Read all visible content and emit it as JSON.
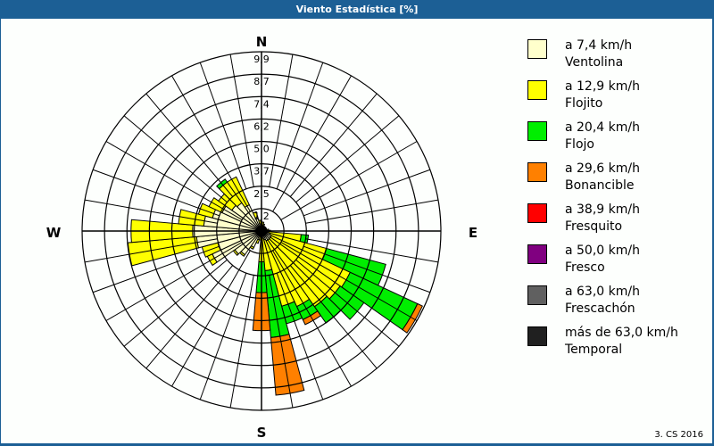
{
  "window": {
    "title": "Viento Estadística [%]",
    "titlebar_color": "#1c5f95",
    "copyright": "3. CS 2016"
  },
  "chart_data": {
    "type": "wind-rose",
    "title": "Viento Estadística [%]",
    "unit": "%",
    "directions": {
      "N": "N",
      "E": "E",
      "S": "S",
      "W": "W"
    },
    "sector_width_deg": 10,
    "rings": [
      "1,2",
      "2,5",
      "3,7",
      "5,0",
      "6,2",
      "7,4",
      "8,7",
      "9,9"
    ],
    "rmax": 9.9,
    "legend": [
      {
        "range": "a 7,4 km/h",
        "name": "Ventolina",
        "color": "#ffffcc"
      },
      {
        "range": "a 12,9 km/h",
        "name": "Flojito",
        "color": "#ffff00"
      },
      {
        "range": "a 20,4 km/h",
        "name": "Flojo",
        "color": "#00ee00"
      },
      {
        "range": "a 29,6 km/h",
        "name": "Bonancible",
        "color": "#ff8000"
      },
      {
        "range": "a 38,9 km/h",
        "name": "Fresquito",
        "color": "#ff0000"
      },
      {
        "range": "a 50,0 km/h",
        "name": "Fresco",
        "color": "#800080"
      },
      {
        "range": "a 63,0 km/h",
        "name": "Frescachón",
        "color": "#606060"
      },
      {
        "range": "más de 63,0 km/h",
        "name": "Temporal",
        "color": "#202020"
      }
    ],
    "sectors": [
      {
        "dir": 0,
        "cum": [
          0.3,
          0.4
        ]
      },
      {
        "dir": 10,
        "cum": [
          0.3,
          0.5
        ]
      },
      {
        "dir": 20,
        "cum": [
          0.3,
          0.4
        ]
      },
      {
        "dir": 30,
        "cum": [
          0.2,
          0.3
        ]
      },
      {
        "dir": 40,
        "cum": [
          0.2,
          0.3
        ]
      },
      {
        "dir": 50,
        "cum": [
          0.2,
          0.3
        ]
      },
      {
        "dir": 60,
        "cum": [
          0.2,
          0.3
        ]
      },
      {
        "dir": 70,
        "cum": [
          0.2,
          0.3
        ]
      },
      {
        "dir": 80,
        "cum": [
          0.3,
          0.4
        ]
      },
      {
        "dir": 90,
        "cum": [
          0.3,
          0.5
        ]
      },
      {
        "dir": 100,
        "cum": [
          0.4,
          2.2,
          2.6
        ]
      },
      {
        "dir": 110,
        "cum": [
          0.5,
          3.7,
          7.1
        ]
      },
      {
        "dir": 120,
        "cum": [
          0.6,
          5.4,
          9.5,
          9.8
        ]
      },
      {
        "dir": 130,
        "cum": [
          0.6,
          5.3,
          6.9
        ]
      },
      {
        "dir": 140,
        "cum": [
          0.6,
          5.1,
          6.2
        ]
      },
      {
        "dir": 150,
        "cum": [
          0.6,
          4.6,
          5.4,
          5.7
        ]
      },
      {
        "dir": 160,
        "cum": [
          0.5,
          4.3,
          5.3
        ]
      },
      {
        "dir": 170,
        "cum": [
          0.4,
          2.2,
          5.9,
          9.1
        ]
      },
      {
        "dir": 180,
        "cum": [
          0.3,
          1.7,
          3.4,
          5.5
        ]
      },
      {
        "dir": 190,
        "cum": [
          0.3,
          0.5
        ]
      },
      {
        "dir": 200,
        "cum": [
          0.5,
          0.7
        ]
      },
      {
        "dir": 210,
        "cum": [
          1.0,
          1.1
        ]
      },
      {
        "dir": 220,
        "cum": [
          1.6,
          1.7
        ]
      },
      {
        "dir": 230,
        "cum": [
          1.8,
          1.9
        ]
      },
      {
        "dir": 240,
        "cum": [
          3.0,
          3.3
        ]
      },
      {
        "dir": 250,
        "cum": [
          2.5,
          3.4
        ]
      },
      {
        "dir": 260,
        "cum": [
          3.6,
          7.4
        ]
      },
      {
        "dir": 270,
        "cum": [
          3.8,
          7.2
        ]
      },
      {
        "dir": 280,
        "cum": [
          3.2,
          4.6
        ]
      },
      {
        "dir": 290,
        "cum": [
          2.8,
          3.6
        ]
      },
      {
        "dir": 300,
        "cum": [
          2.4,
          3.2
        ]
      },
      {
        "dir": 310,
        "cum": [
          2.0,
          2.9
        ]
      },
      {
        "dir": 320,
        "cum": [
          1.9,
          3.3,
          3.5
        ]
      },
      {
        "dir": 330,
        "cum": [
          1.6,
          3.3
        ]
      },
      {
        "dir": 340,
        "cum": [
          0.8,
          1.1
        ]
      },
      {
        "dir": 350,
        "cum": [
          0.4,
          0.6
        ]
      }
    ]
  }
}
